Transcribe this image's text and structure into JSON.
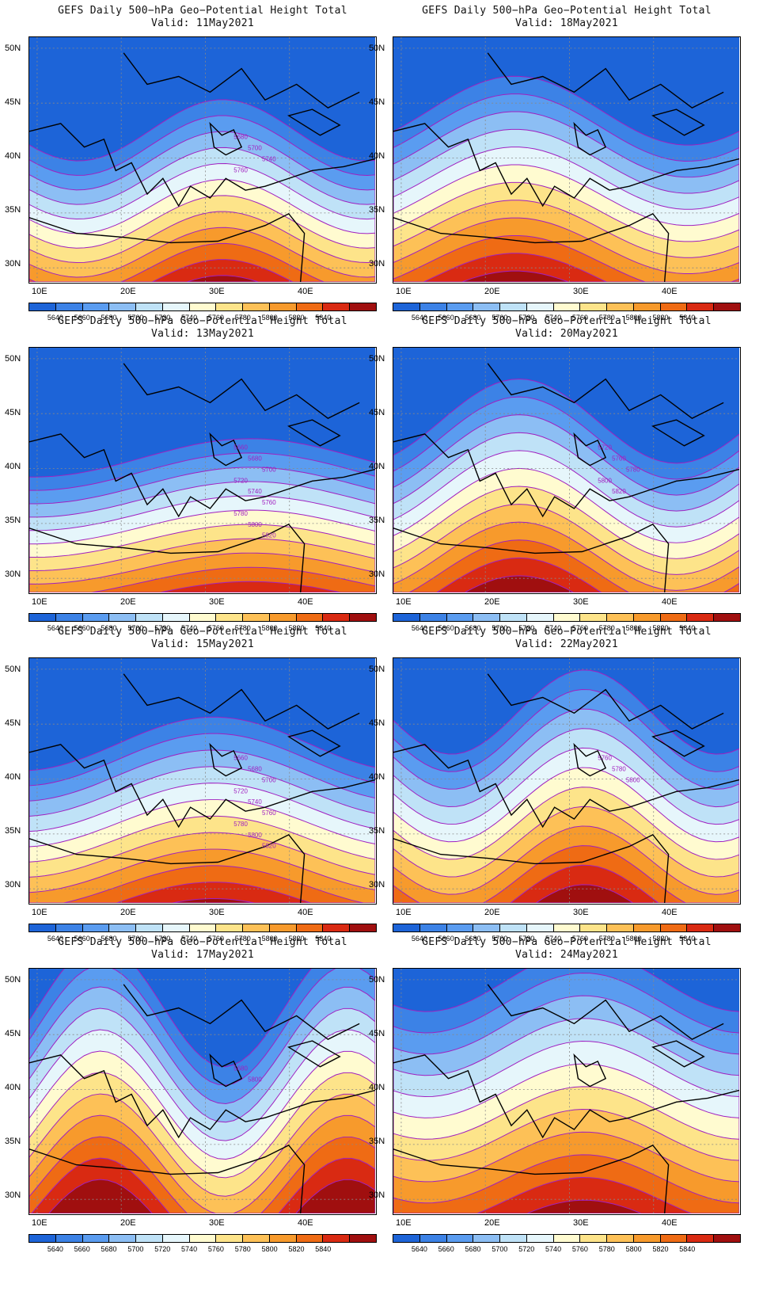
{
  "title_line1": "GEFS Daily 500−hPa Geo−Potential Height Total",
  "valid_prefix": "Valid:",
  "panels": [
    {
      "valid": "11May2021",
      "contour_labels": [
        "5680",
        "5700",
        "5740",
        "5760"
      ]
    },
    {
      "valid": "18May2021",
      "contour_labels": []
    },
    {
      "valid": "13May2021",
      "contour_labels": [
        "5660",
        "5680",
        "5700",
        "5720",
        "5740",
        "5760",
        "5780",
        "5800",
        "5820"
      ]
    },
    {
      "valid": "20May2021",
      "contour_labels": [
        "5720",
        "5760",
        "5780",
        "5800",
        "5820"
      ]
    },
    {
      "valid": "15May2021",
      "contour_labels": [
        "5660",
        "5680",
        "5700",
        "5720",
        "5740",
        "5760",
        "5780",
        "5800",
        "5820"
      ]
    },
    {
      "valid": "22May2021",
      "contour_labels": [
        "5760",
        "5780",
        "5800"
      ]
    },
    {
      "valid": "17May2021",
      "contour_labels": [
        "5680",
        "5800"
      ]
    },
    {
      "valid": "24May2021",
      "contour_labels": []
    }
  ],
  "y_ticks": [
    "50N",
    "45N",
    "40N",
    "35N",
    "30N"
  ],
  "x_ticks": [
    "10E",
    "20E",
    "30E",
    "40E"
  ],
  "colorbar_labels": [
    "5640",
    "5660",
    "5680",
    "5700",
    "5720",
    "5740",
    "5760",
    "5780",
    "5800",
    "5820",
    "5840"
  ],
  "colorbar_colors": [
    "#1d64d8",
    "#3c82e6",
    "#5a9cf0",
    "#8cbef4",
    "#bfe2f7",
    "#e6f6fb",
    "#fffbd0",
    "#fde48a",
    "#fdc157",
    "#f79a2c",
    "#ef6b14",
    "#d92a12",
    "#a00f0f"
  ]
}
